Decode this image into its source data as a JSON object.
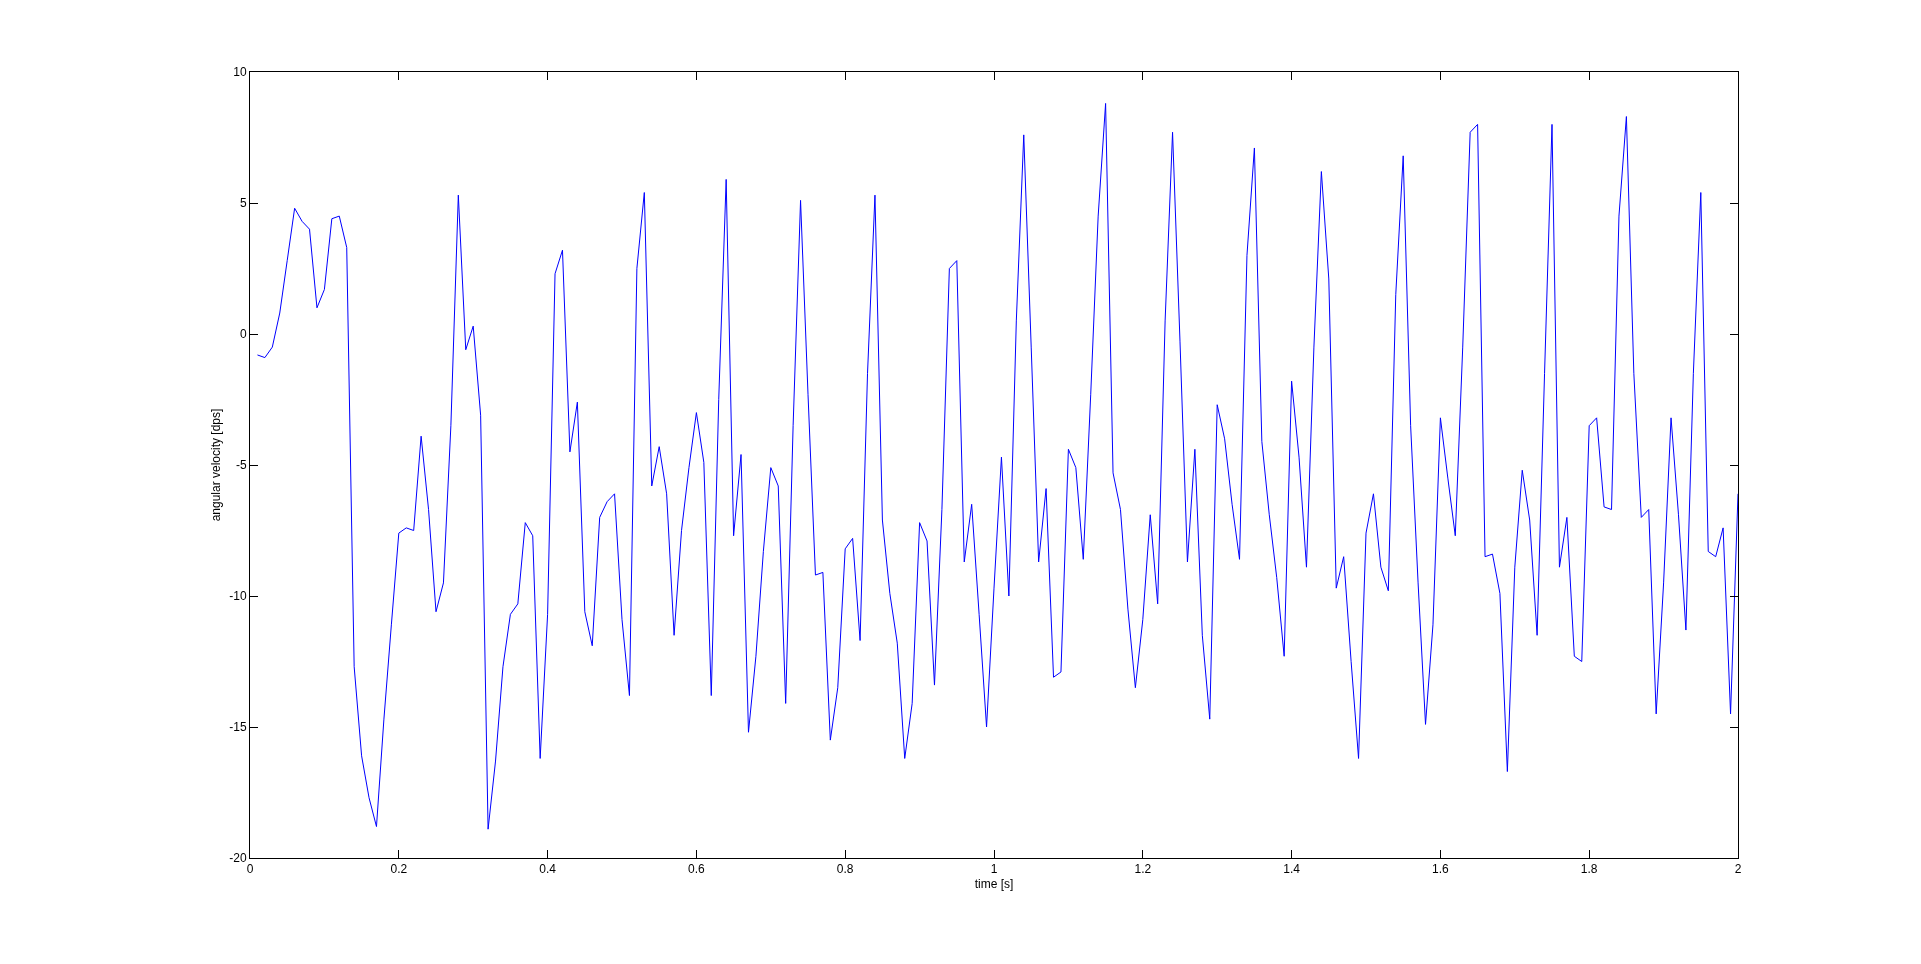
{
  "chart_data": {
    "type": "line",
    "xlabel": "time [s]",
    "ylabel": "angular velocity [dps]",
    "xlim": [
      0,
      2
    ],
    "xticks": [
      0,
      0.2,
      0.4,
      0.6,
      0.8,
      1,
      1.2,
      1.4,
      1.6,
      1.8,
      2
    ],
    "ylim": [
      -20,
      10
    ],
    "yticks": [
      -20,
      -15,
      -10,
      -5,
      0,
      5,
      10
    ],
    "marker": "none",
    "line_style": "solid",
    "x": [
      0.01,
      0.02,
      0.03,
      0.04,
      0.05,
      0.06,
      0.07,
      0.08,
      0.09,
      0.1,
      0.11,
      0.12,
      0.13,
      0.14,
      0.15,
      0.16,
      0.17,
      0.18,
      0.19,
      0.2,
      0.21,
      0.22,
      0.23,
      0.24,
      0.25,
      0.26,
      0.27,
      0.28,
      0.29,
      0.3,
      0.31,
      0.32,
      0.33,
      0.34,
      0.35,
      0.36,
      0.37,
      0.38,
      0.39,
      0.4,
      0.41,
      0.42,
      0.43,
      0.44,
      0.45,
      0.46,
      0.47,
      0.48,
      0.49,
      0.5,
      0.51,
      0.52,
      0.53,
      0.54,
      0.55,
      0.56,
      0.57,
      0.58,
      0.59,
      0.6,
      0.61,
      0.62,
      0.63,
      0.64,
      0.65,
      0.66,
      0.67,
      0.68,
      0.69,
      0.7,
      0.71,
      0.72,
      0.73,
      0.74,
      0.75,
      0.76,
      0.77,
      0.78,
      0.79,
      0.8,
      0.81,
      0.82,
      0.83,
      0.84,
      0.85,
      0.86,
      0.87,
      0.88,
      0.89,
      0.9,
      0.91,
      0.92,
      0.93,
      0.94,
      0.95,
      0.96,
      0.97,
      0.98,
      0.99,
      1.0,
      1.01,
      1.02,
      1.03,
      1.04,
      1.05,
      1.06,
      1.07,
      1.08,
      1.09,
      1.1,
      1.11,
      1.12,
      1.13,
      1.14,
      1.15,
      1.16,
      1.17,
      1.18,
      1.19,
      1.2,
      1.21,
      1.22,
      1.23,
      1.24,
      1.25,
      1.26,
      1.27,
      1.28,
      1.29,
      1.3,
      1.31,
      1.32,
      1.33,
      1.34,
      1.35,
      1.36,
      1.37,
      1.38,
      1.39,
      1.4,
      1.41,
      1.42,
      1.43,
      1.44,
      1.45,
      1.46,
      1.47,
      1.48,
      1.49,
      1.5,
      1.51,
      1.52,
      1.53,
      1.54,
      1.55,
      1.56,
      1.57,
      1.58,
      1.59,
      1.6,
      1.61,
      1.62,
      1.63,
      1.64,
      1.65,
      1.66,
      1.67,
      1.68,
      1.69,
      1.7,
      1.71,
      1.72,
      1.73,
      1.74,
      1.75,
      1.76,
      1.77,
      1.78,
      1.79,
      1.8,
      1.81,
      1.82,
      1.83,
      1.84,
      1.85,
      1.86,
      1.87,
      1.88,
      1.89,
      1.9,
      1.91,
      1.92,
      1.93,
      1.94,
      1.95,
      1.96,
      1.97,
      1.98,
      1.99,
      2.0
    ],
    "series": [
      {
        "color": "#0000ff",
        "values": [
          -0.8,
          -0.9,
          -0.5,
          0.8,
          2.8,
          4.8,
          4.3,
          4.0,
          1.0,
          1.7,
          4.4,
          4.5,
          3.3,
          -12.7,
          -16.1,
          -17.7,
          -18.8,
          -14.7,
          -11.1,
          -7.6,
          -7.4,
          -7.5,
          -3.9,
          -6.7,
          -10.6,
          -9.5,
          -3.5,
          5.3,
          -0.6,
          0.3,
          -3.1,
          -18.9,
          -16.3,
          -12.7,
          -10.7,
          -10.3,
          -7.2,
          -7.7,
          -16.2,
          -10.7,
          2.3,
          3.2,
          -4.5,
          -2.6,
          -10.6,
          -11.9,
          -7.0,
          -6.4,
          -6.1,
          -10.9,
          -13.8,
          2.5,
          5.4,
          -5.8,
          -4.3,
          -6.1,
          -11.5,
          -7.5,
          -5.1,
          -3.0,
          -4.9,
          -13.8,
          -2.5,
          5.9,
          -7.7,
          -4.6,
          -15.2,
          -12.3,
          -8.3,
          -5.1,
          -5.8,
          -14.1,
          -3.5,
          5.1,
          -2.3,
          -9.2,
          -9.1,
          -15.5,
          -13.5,
          -8.2,
          -7.8,
          -11.7,
          -1.5,
          5.3,
          -7.1,
          -9.9,
          -11.8,
          -16.2,
          -14.1,
          -7.2,
          -7.9,
          -13.4,
          -6.7,
          2.5,
          2.8,
          -8.7,
          -6.5,
          -10.7,
          -15.0,
          -9.7,
          -4.7,
          -10.0,
          0.5,
          7.6,
          -0.5,
          -8.7,
          -5.9,
          -13.1,
          -12.9,
          -4.4,
          -5.1,
          -8.6,
          -2.3,
          4.5,
          8.8,
          -5.3,
          -6.7,
          -10.5,
          -13.5,
          -10.9,
          -6.9,
          -10.3,
          0.5,
          7.7,
          -0.3,
          -8.7,
          -4.4,
          -11.5,
          -14.7,
          -2.7,
          -4.0,
          -6.5,
          -8.6,
          3.0,
          7.1,
          -4.1,
          -6.9,
          -9.3,
          -12.3,
          -1.8,
          -4.7,
          -8.9,
          -0.5,
          6.2,
          2.1,
          -9.7,
          -8.5,
          -12.5,
          -16.2,
          -7.6,
          -6.1,
          -8.9,
          -9.8,
          1.5,
          6.8,
          -3.5,
          -9.5,
          -14.9,
          -11.1,
          -3.2,
          -5.5,
          -7.7,
          -0.5,
          7.7,
          8.0,
          -8.5,
          -8.4,
          -9.9,
          -16.7,
          -8.9,
          -5.2,
          -7.1,
          -11.5,
          -1.5,
          8.0,
          -8.9,
          -7.0,
          -12.3,
          -12.5,
          -3.5,
          -3.2,
          -6.6,
          -6.7,
          4.5,
          8.3,
          -1.5,
          -7.0,
          -6.7,
          -14.5,
          -9.5,
          -3.2,
          -6.9,
          -11.3,
          -1.5,
          5.4,
          -8.3,
          -8.5,
          -7.4,
          -14.5,
          -6.1
        ]
      }
    ]
  }
}
